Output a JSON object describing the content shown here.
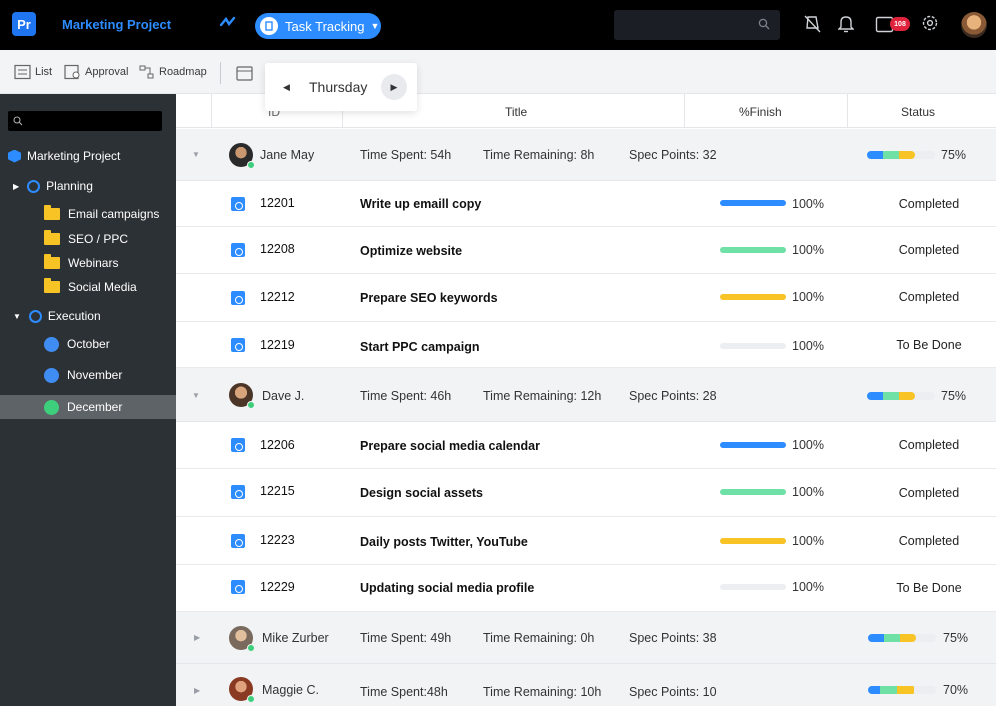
{
  "topbar": {
    "project_name": "Marketing Project",
    "logo_text": "Pr",
    "task_tracking_label": "Task Tracking",
    "notification_count": "108"
  },
  "toolbar": {
    "list_label": "List",
    "approval_label": "Approval",
    "roadmap_label": "Roadmap",
    "day_label": "Thursday"
  },
  "sidebar": {
    "root": "Marketing Project",
    "planning": "Planning",
    "planning_items": [
      "Email campaigns",
      "SEO / PPC",
      "Webinars",
      "Social Media"
    ],
    "execution": "Execution",
    "execution_items": [
      "October",
      "November",
      "December"
    ],
    "active_item": "December"
  },
  "table": {
    "headers": {
      "id": "ID",
      "title": "Title",
      "finish": "%Finish",
      "status": "Status"
    },
    "groups": [
      {
        "name": "Jane May",
        "time_spent": "Time Spent: 54h",
        "time_remaining": "Time Remaining: 8h",
        "spec_points": "Spec Points: 32",
        "progress": "75%",
        "tasks": [
          {
            "id": "12201",
            "title": "Write up emaill copy",
            "finish": "100%",
            "status": "Completed",
            "color": "#2d8cff"
          },
          {
            "id": "12208",
            "title": "Optimize website",
            "finish": "100%",
            "status": "Completed",
            "color": "#6fe0a6"
          },
          {
            "id": "12212",
            "title": "Prepare SEO keywords",
            "finish": "100%",
            "status": "Completed",
            "color": "#f7c325"
          },
          {
            "id": "12219",
            "title": "Start PPC campaign",
            "finish": "100%",
            "status": "To Be Done",
            "color": "#eceef1"
          }
        ]
      },
      {
        "name": "Dave J.",
        "time_spent": "Time Spent: 46h",
        "time_remaining": "Time Remaining: 12h",
        "spec_points": "Spec Points: 28",
        "progress": "75%",
        "tasks": [
          {
            "id": "12206",
            "title": "Prepare social media calendar",
            "finish": "100%",
            "status": "Completed",
            "color": "#2d8cff"
          },
          {
            "id": "12215",
            "title": "Design social assets",
            "finish": "100%",
            "status": "Completed",
            "color": "#6fe0a6"
          },
          {
            "id": "12223",
            "title": "Daily posts Twitter, YouTube",
            "finish": "100%",
            "status": "Completed",
            "color": "#f7c325"
          },
          {
            "id": "12229",
            "title": "Updating social media profile",
            "finish": "100%",
            "status": "To Be Done",
            "color": "#eceef1"
          }
        ]
      },
      {
        "name": "Mike Zurber",
        "time_spent": "Time Spent: 49h",
        "time_remaining": "Time Remaining: 0h",
        "spec_points": "Spec Points: 38",
        "progress": "75%",
        "tasks": []
      },
      {
        "name": "Maggie C.",
        "time_spent": "Time Spent:48h",
        "time_remaining": "Time Remaining: 10h",
        "spec_points": "Spec Points: 10",
        "progress": "70%",
        "tasks": []
      }
    ]
  },
  "colors": {
    "accent": "#2d8cff",
    "green": "#3ecf7d",
    "yellow": "#f7c325",
    "sidebar_bg": "#2c3136"
  }
}
